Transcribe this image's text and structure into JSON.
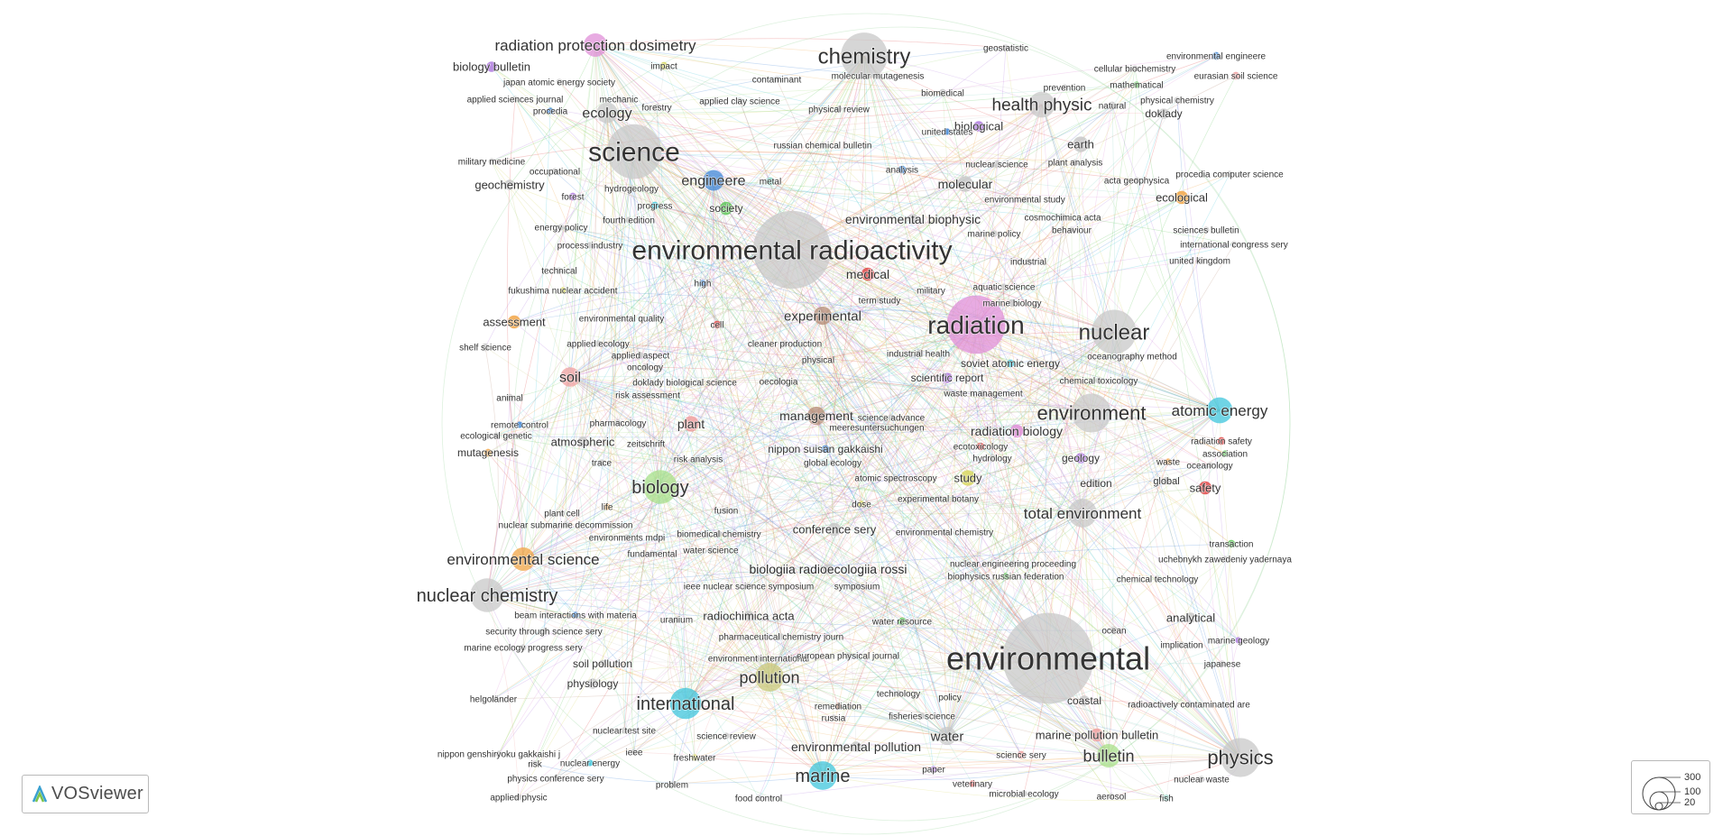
{
  "app": {
    "name": "VOSviewer",
    "logo_icon": "vosviewer-logo-icon"
  },
  "size_legend": {
    "values": [
      "300",
      "100",
      "20"
    ]
  },
  "palette": {
    "gray": "#c8c8c8",
    "pink": "#e08fd8",
    "violet": "#b07be0",
    "blue": "#3f86d6",
    "cyan": "#3fc6dc",
    "green": "#5fc65a",
    "lightgreen": "#a8e08a",
    "orange": "#f2a646",
    "red": "#e04848",
    "salmon": "#f0a0a0",
    "yellow": "#d8d860",
    "brown": "#b48a74",
    "olive": "#c8c87a",
    "teal": "#7fd0c0"
  },
  "nodes": [
    {
      "label": "environmental radioactivity",
      "size": 60,
      "color": "gray"
    },
    {
      "label": "environmental",
      "size": 70,
      "color": "gray"
    },
    {
      "label": "radiation",
      "size": 45,
      "color": "pink"
    },
    {
      "label": "science",
      "size": 42,
      "color": "gray"
    },
    {
      "label": "chemistry",
      "size": 36,
      "color": "gray"
    },
    {
      "label": "nuclear",
      "size": 34,
      "color": "gray"
    },
    {
      "label": "environment",
      "size": 30,
      "color": "gray"
    },
    {
      "label": "biology",
      "size": 26,
      "color": "lightgreen"
    },
    {
      "label": "nuclear chemistry",
      "size": 26,
      "color": "gray"
    },
    {
      "label": "physics",
      "size": 30,
      "color": "gray"
    },
    {
      "label": "international",
      "size": 24,
      "color": "cyan"
    },
    {
      "label": "marine",
      "size": 22,
      "color": "cyan"
    },
    {
      "label": "pollution",
      "size": 22,
      "color": "olive"
    },
    {
      "label": "total environment",
      "size": 22,
      "color": "gray"
    },
    {
      "label": "atomic energy",
      "size": 20,
      "color": "cyan"
    },
    {
      "label": "health physic",
      "size": 20,
      "color": "gray"
    },
    {
      "label": "bulletin",
      "size": 18,
      "color": "lightgreen"
    },
    {
      "label": "environmental science",
      "size": 18,
      "color": "orange"
    },
    {
      "label": "radiation protection dosimetry",
      "size": 18,
      "color": "pink"
    },
    {
      "label": "engineere",
      "size": 16,
      "color": "blue"
    },
    {
      "label": "soil",
      "size": 15,
      "color": "salmon"
    },
    {
      "label": "ecology",
      "size": 16,
      "color": "gray"
    },
    {
      "label": "experimental",
      "size": 14,
      "color": "brown"
    },
    {
      "label": "management",
      "size": 14,
      "color": "brown"
    },
    {
      "label": "water",
      "size": 14,
      "color": "gray"
    },
    {
      "label": "medical",
      "size": 10,
      "color": "red"
    },
    {
      "label": "plant",
      "size": 12,
      "color": "salmon"
    },
    {
      "label": "study",
      "size": 12,
      "color": "yellow"
    },
    {
      "label": "radiation biology",
      "size": 10,
      "color": "pink"
    },
    {
      "label": "safety",
      "size": 10,
      "color": "red"
    },
    {
      "label": "earth",
      "size": 12,
      "color": "gray"
    },
    {
      "label": "molecular",
      "size": 12,
      "color": "gray"
    },
    {
      "label": "ecological",
      "size": 10,
      "color": "orange"
    },
    {
      "label": "society",
      "size": 10,
      "color": "green"
    },
    {
      "label": "biology bulletin",
      "size": 8,
      "color": "violet"
    },
    {
      "label": "geochemistry",
      "size": 8,
      "color": "gray"
    },
    {
      "label": "assessment",
      "size": 10,
      "color": "orange"
    },
    {
      "label": "shelf science",
      "size": 6,
      "color": "gray"
    },
    {
      "label": "animal",
      "size": 6,
      "color": "gray"
    },
    {
      "label": "mutagenesis",
      "size": 6,
      "color": "orange"
    },
    {
      "label": "atmospheric",
      "size": 8,
      "color": "gray"
    },
    {
      "label": "environmental engineere",
      "size": 6,
      "color": "blue"
    },
    {
      "label": "eurasian soil science",
      "size": 6,
      "color": "salmon"
    },
    {
      "label": "doklady",
      "size": 8,
      "color": "gray"
    },
    {
      "label": "biological",
      "size": 8,
      "color": "violet"
    },
    {
      "label": "analytical",
      "size": 8,
      "color": "gray"
    },
    {
      "label": "coastal",
      "size": 8,
      "color": "gray"
    },
    {
      "label": "marine pollution bulletin",
      "size": 10,
      "color": "salmon"
    },
    {
      "label": "environmental pollution",
      "size": 8,
      "color": "gray"
    },
    {
      "label": "conference sery",
      "size": 10,
      "color": "gray"
    },
    {
      "label": "biologiia radioecologiia rossi",
      "size": 8,
      "color": "gray"
    },
    {
      "label": "radiochimica acta",
      "size": 8,
      "color": "gray"
    },
    {
      "label": "environmental biophysic",
      "size": 8,
      "color": "gray"
    },
    {
      "label": "cosmochimica acta",
      "size": 6,
      "color": "gray"
    },
    {
      "label": "behaviour",
      "size": 5,
      "color": "gray"
    },
    {
      "label": "nippon suisan gakkaishi",
      "size": 6,
      "color": "blue"
    },
    {
      "label": "scientific report",
      "size": 8,
      "color": "violet"
    },
    {
      "label": "soviet atomic energy",
      "size": 6,
      "color": "cyan"
    },
    {
      "label": "geology",
      "size": 8,
      "color": "violet"
    },
    {
      "label": "physiology",
      "size": 8,
      "color": "gray"
    },
    {
      "label": "soil pollution",
      "size": 6,
      "color": "gray"
    },
    {
      "label": "progress",
      "size": 6,
      "color": "cyan"
    },
    {
      "label": "forest",
      "size": 6,
      "color": "violet"
    },
    {
      "label": "impact",
      "size": 6,
      "color": "yellow"
    },
    {
      "label": "metal",
      "size": 6,
      "color": "teal"
    },
    {
      "label": "edition",
      "size": 6,
      "color": "gray"
    },
    {
      "label": "global",
      "size": 6,
      "color": "gray"
    },
    {
      "label": "hydrology",
      "size": 6,
      "color": "gray"
    },
    {
      "label": "ecotoxicology",
      "size": 6,
      "color": "red"
    },
    {
      "label": "marine biology",
      "size": 6,
      "color": "gray"
    },
    {
      "label": "industrial",
      "size": 5,
      "color": "gray"
    },
    {
      "label": "aquatic science",
      "size": 5,
      "color": "gray"
    },
    {
      "label": "physical",
      "size": 6,
      "color": "gray"
    },
    {
      "label": "oecologia",
      "size": 5,
      "color": "gray"
    },
    {
      "label": "cell",
      "size": 6,
      "color": "red"
    },
    {
      "label": "high",
      "size": 5,
      "color": "blue"
    },
    {
      "label": "fusion",
      "size": 5,
      "color": "gray"
    },
    {
      "label": "dose",
      "size": 5,
      "color": "yellow"
    },
    {
      "label": "ocean",
      "size": 6,
      "color": "gray"
    },
    {
      "label": "water resource",
      "size": 6,
      "color": "green"
    },
    {
      "label": "transaction",
      "size": 6,
      "color": "green"
    },
    {
      "label": "radiation safety",
      "size": 6,
      "color": "red"
    },
    {
      "label": "association",
      "size": 5,
      "color": "green"
    },
    {
      "label": "oceanology",
      "size": 5,
      "color": "gray"
    },
    {
      "label": "waste",
      "size": 5,
      "color": "orange"
    },
    {
      "label": "nuclear science",
      "size": 6,
      "color": "gray"
    },
    {
      "label": "united states",
      "size": 5,
      "color": "blue"
    },
    {
      "label": "analysis",
      "size": 6,
      "color": "blue"
    },
    {
      "label": "biomedical",
      "size": 6,
      "color": "gray"
    },
    {
      "label": "prevention",
      "size": 5,
      "color": "gray"
    },
    {
      "label": "natural",
      "size": 6,
      "color": "gray"
    },
    {
      "label": "fukushima nuclear accident",
      "size": 5,
      "color": "yellow"
    },
    {
      "label": "environmental quality",
      "size": 5,
      "color": "gray"
    },
    {
      "label": "applied ecology",
      "size": 5,
      "color": "gray"
    },
    {
      "label": "oncology",
      "size": 5,
      "color": "gray"
    },
    {
      "label": "doklady biological science",
      "size": 5,
      "color": "gray"
    },
    {
      "label": "trace",
      "size": 5,
      "color": "gray"
    },
    {
      "label": "zeitschrift",
      "size": 5,
      "color": "gray"
    },
    {
      "label": "life",
      "size": 5,
      "color": "orange"
    },
    {
      "label": "pharmacology",
      "size": 5,
      "color": "gray"
    },
    {
      "label": "remediation",
      "size": 5,
      "color": "brown"
    },
    {
      "label": "russia",
      "size": 5,
      "color": "gray"
    },
    {
      "label": "freshwater",
      "size": 5,
      "color": "yellow"
    },
    {
      "label": "problem",
      "size": 5,
      "color": "gray"
    },
    {
      "label": "science sery",
      "size": 6,
      "color": "salmon"
    },
    {
      "label": "technology",
      "size": 5,
      "color": "gray"
    },
    {
      "label": "policy",
      "size": 5,
      "color": "gray"
    },
    {
      "label": "japanese",
      "size": 5,
      "color": "gray"
    },
    {
      "label": "marine geology",
      "size": 5,
      "color": "violet"
    },
    {
      "label": "chemical technology",
      "size": 5,
      "color": "gray"
    },
    {
      "label": "experimental botany",
      "size": 5,
      "color": "gray"
    },
    {
      "label": "environmental chemistry",
      "size": 5,
      "color": "gray"
    },
    {
      "label": "biophysics russian federation",
      "size": 5,
      "color": "green"
    },
    {
      "label": "uranium",
      "size": 5,
      "color": "gray"
    },
    {
      "label": "symposium",
      "size": 5,
      "color": "gray"
    },
    {
      "label": "fundamental",
      "size": 5,
      "color": "gray"
    },
    {
      "label": "water science",
      "size": 5,
      "color": "gray"
    },
    {
      "label": "biomedical chemistry",
      "size": 5,
      "color": "gray"
    },
    {
      "label": "nuclear test site",
      "size": 5,
      "color": "gray"
    },
    {
      "label": "science review",
      "size": 5,
      "color": "gray"
    },
    {
      "label": "ieee",
      "size": 5,
      "color": "gray"
    },
    {
      "label": "environment international",
      "size": 5,
      "color": "gray"
    },
    {
      "label": "physics conference sery",
      "size": 5,
      "color": "gray"
    },
    {
      "label": "nuclear energy",
      "size": 5,
      "color": "cyan"
    },
    {
      "label": "applied physic",
      "size": 5,
      "color": "gray"
    },
    {
      "label": "food control",
      "size": 5,
      "color": "gray"
    },
    {
      "label": "microbial ecology",
      "size": 5,
      "color": "gray"
    },
    {
      "label": "aerosol",
      "size": 5,
      "color": "gray"
    },
    {
      "label": "fish",
      "size": 5,
      "color": "teal"
    },
    {
      "label": "nuclear waste",
      "size": 5,
      "color": "gray"
    },
    {
      "label": "veterinary",
      "size": 5,
      "color": "red"
    },
    {
      "label": "paper",
      "size": 5,
      "color": "violet"
    },
    {
      "label": "fisheries science",
      "size": 5,
      "color": "gray"
    },
    {
      "label": "european physical journal",
      "size": 5,
      "color": "gray"
    },
    {
      "label": "pharmaceutical chemistry journ",
      "size": 5,
      "color": "gray"
    },
    {
      "label": "beam interactions with materia",
      "size": 5,
      "color": "blue"
    },
    {
      "label": "security through science sery",
      "size": 5,
      "color": "gray"
    },
    {
      "label": "marine ecology progress sery",
      "size": 5,
      "color": "gray"
    },
    {
      "label": "helgoländer",
      "size": 5,
      "color": "gray"
    },
    {
      "label": "nippon genshiryoku gakkaishi j",
      "size": 5,
      "color": "gray"
    },
    {
      "label": "risk",
      "size": 5,
      "color": "gray"
    },
    {
      "label": "nuclear submarine decommission",
      "size": 5,
      "color": "gray"
    },
    {
      "label": "plant cell",
      "size": 5,
      "color": "gray"
    },
    {
      "label": "environments mdpi",
      "size": 5,
      "color": "gray"
    },
    {
      "label": "ieee nuclear science symposium",
      "size": 5,
      "color": "gray"
    },
    {
      "label": "biologiia radioecologiia rossi",
      "size": 5,
      "color": "gray"
    },
    {
      "label": "nuclear engineering proceeding",
      "size": 5,
      "color": "gray"
    },
    {
      "label": "uchebnykh zawedeniy yadernaya",
      "size": 5,
      "color": "gray"
    },
    {
      "label": "implication",
      "size": 5,
      "color": "gray"
    },
    {
      "label": "radioactively contaminated are",
      "size": 5,
      "color": "gray"
    },
    {
      "label": "ecological genetic",
      "size": 5,
      "color": "gray"
    },
    {
      "label": "remote control",
      "size": 5,
      "color": "blue"
    },
    {
      "label": "risk assessment",
      "size": 5,
      "color": "gray"
    },
    {
      "label": "applied aspect",
      "size": 5,
      "color": "gray"
    },
    {
      "label": "risk analysis",
      "size": 5,
      "color": "gray"
    },
    {
      "label": "global ecology",
      "size": 5,
      "color": "gray"
    },
    {
      "label": "atomic spectroscopy",
      "size": 5,
      "color": "gray"
    },
    {
      "label": "meeresuntersuchungen",
      "size": 5,
      "color": "gray"
    },
    {
      "label": "science advance",
      "size": 5,
      "color": "gray"
    },
    {
      "label": "waste management",
      "size": 5,
      "color": "gray"
    },
    {
      "label": "industrial health",
      "size": 5,
      "color": "gray"
    },
    {
      "label": "cleaner production",
      "size": 5,
      "color": "gray"
    },
    {
      "label": "term study",
      "size": 5,
      "color": "gray"
    },
    {
      "label": "military",
      "size": 5,
      "color": "gray"
    },
    {
      "label": "oceanography method",
      "size": 5,
      "color": "gray"
    },
    {
      "label": "chemical toxicology",
      "size": 5,
      "color": "gray"
    },
    {
      "label": "united kingdom",
      "size": 5,
      "color": "gray"
    },
    {
      "label": "international congress sery",
      "size": 5,
      "color": "gray"
    },
    {
      "label": "sciences bulletin",
      "size": 5,
      "color": "gray"
    },
    {
      "label": "procedia computer science",
      "size": 5,
      "color": "gray"
    },
    {
      "label": "acta geophysica",
      "size": 5,
      "color": "gray"
    },
    {
      "label": "plant analysis",
      "size": 5,
      "color": "gray"
    },
    {
      "label": "environmental study",
      "size": 5,
      "color": "gray"
    },
    {
      "label": "marine policy",
      "size": 5,
      "color": "gray"
    },
    {
      "label": "physical chemistry",
      "size": 5,
      "color": "gray"
    },
    {
      "label": "mathematical",
      "size": 5,
      "color": "green"
    },
    {
      "label": "cellular biochemistry",
      "size": 5,
      "color": "gray"
    },
    {
      "label": "geostatistic",
      "size": 5,
      "color": "gray"
    },
    {
      "label": "molecular mutagenesis",
      "size": 5,
      "color": "gray"
    },
    {
      "label": "contaminant",
      "size": 5,
      "color": "gray"
    },
    {
      "label": "applied clay science",
      "size": 5,
      "color": "gray"
    },
    {
      "label": "physical review",
      "size": 5,
      "color": "gray"
    },
    {
      "label": "russian chemical bulletin",
      "size": 5,
      "color": "gray"
    },
    {
      "label": "japan atomic energy society",
      "size": 5,
      "color": "gray"
    },
    {
      "label": "mechanic",
      "size": 5,
      "color": "gray"
    },
    {
      "label": "forestry",
      "size": 5,
      "color": "gray"
    },
    {
      "label": "applied sciences journal",
      "size": 5,
      "color": "gray"
    },
    {
      "label": "procedia",
      "size": 5,
      "color": "blue"
    },
    {
      "label": "military medicine",
      "size": 5,
      "color": "gray"
    },
    {
      "label": "occupational",
      "size": 5,
      "color": "gray"
    },
    {
      "label": "hydrogeology",
      "size": 5,
      "color": "gray"
    },
    {
      "label": "fourth edition",
      "size": 5,
      "color": "gray"
    },
    {
      "label": "energy policy",
      "size": 5,
      "color": "gray"
    },
    {
      "label": "process industry",
      "size": 5,
      "color": "gray"
    },
    {
      "label": "technical",
      "size": 5,
      "color": "gray"
    }
  ]
}
